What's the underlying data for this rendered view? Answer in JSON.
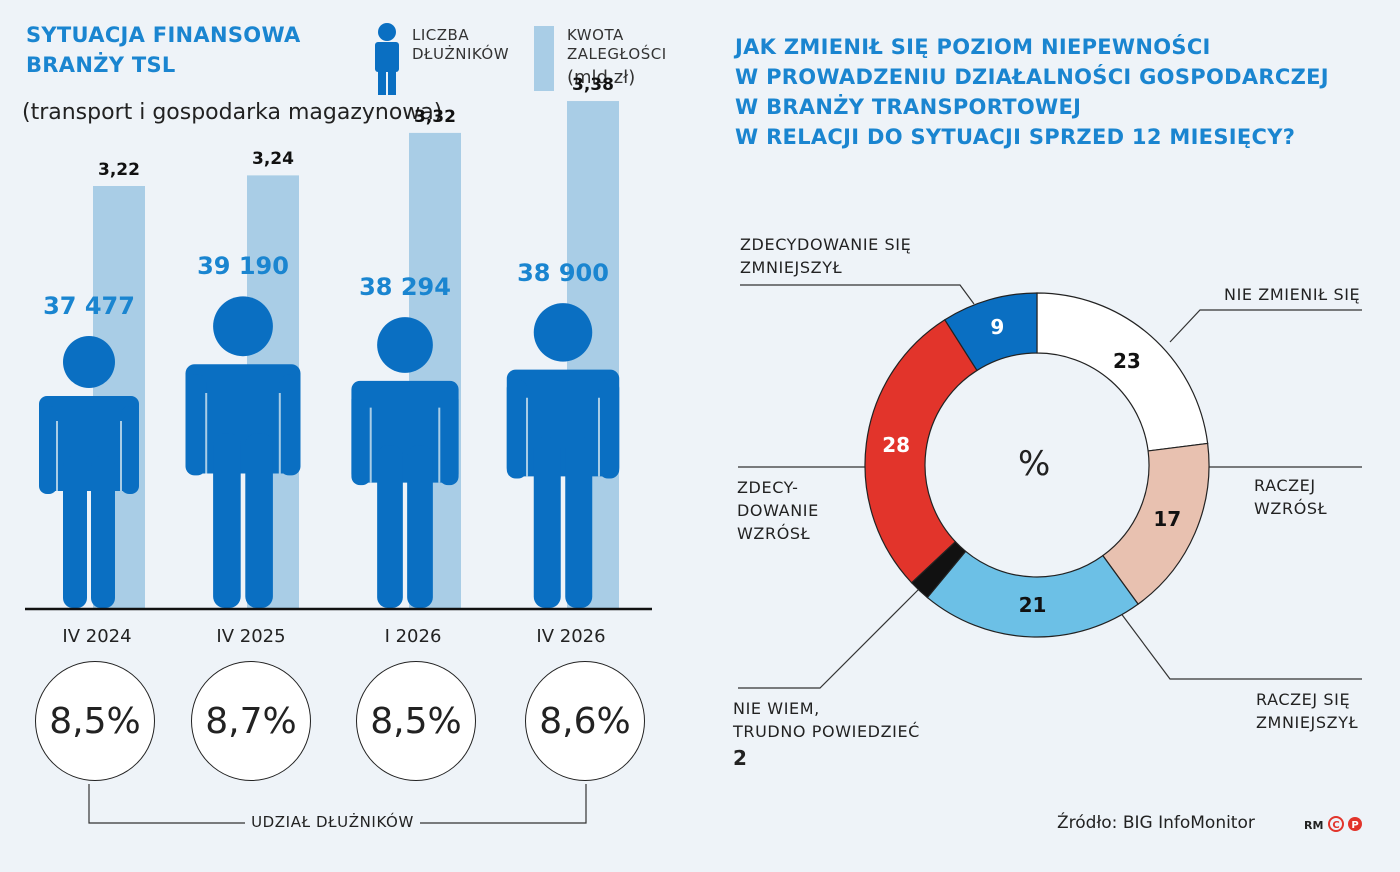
{
  "left": {
    "title_line1": "SYTUACJA FINANSOWA",
    "title_line2": "BRANŻY TSL",
    "subtitle": "(transport i gospodarka magazynowa)",
    "legend_count_line1": "LICZBA",
    "legend_count_line2": "DŁUŻNIKÓW",
    "legend_amount_line1": "KWOTA",
    "legend_amount_line2": "ZALEGŁOŚCI",
    "legend_amount_line3": "(mld zł)",
    "share_label": "UDZIAŁ DŁUŻNIKÓW"
  },
  "right": {
    "title_line1": "JAK ZMIENIŁ SIĘ POZIOM NIEPEWNOŚCI",
    "title_line2": "W PROWADZENIU DZIAŁALNOŚCI GOSPODARCZEJ",
    "title_line3": "W BRANŻY TRANSPORTOWEJ",
    "title_line4": "W RELACJI DO SYTUACJI SPRZED 12 MIESIĘCY?",
    "center_label": "%",
    "source": "Źródło: BIG InfoMonitor",
    "credit": "RM"
  },
  "colors": {
    "accent": "#1a85d0",
    "person": "#0a6fc2",
    "bar": "#a9cde6",
    "red": "#e2342b",
    "pink": "#e8c1b0",
    "light_blue": "#6cc0e6",
    "black": "#111111",
    "white": "#ffffff"
  },
  "chart_data": [
    {
      "type": "bar",
      "categories": [
        "IV 2024",
        "IV 2025",
        "I 2026",
        "IV 2026"
      ],
      "series": [
        {
          "name": "KWOTA ZALEGŁOŚCI (mld zł)",
          "values": [
            3.22,
            3.24,
            3.32,
            3.38
          ],
          "labels": [
            "3,22",
            "3,24",
            "3,32",
            "3,38"
          ]
        },
        {
          "name": "LICZBA DŁUŻNIKÓW",
          "values": [
            37477,
            39190,
            38294,
            38900
          ],
          "labels": [
            "37 477",
            "39 190",
            "38 294",
            "38 900"
          ]
        }
      ],
      "share": {
        "name": "UDZIAŁ DŁUŻNIKÓW",
        "values": [
          8.5,
          8.7,
          8.5,
          8.6
        ],
        "labels": [
          "8,5%",
          "8,7%",
          "8,5%",
          "8,6%"
        ]
      }
    },
    {
      "type": "pie",
      "segments": [
        {
          "label": "NIE ZMIENIŁ SIĘ",
          "value": 23,
          "color": "#ffffff"
        },
        {
          "label": "RACZEJ WZRÓSŁ",
          "value": 17,
          "color": "#e8c1b0"
        },
        {
          "label": "RACZEJ SIĘ ZMNIEJSZYŁ",
          "value": 21,
          "color": "#6cc0e6"
        },
        {
          "label": "NIE WIEM, TRUDNO POWIEDZIEĆ",
          "value": 2,
          "color": "#111111"
        },
        {
          "label": "ZDECYDOWANIE WZRÓSŁ",
          "value": 28,
          "color": "#e2342b"
        },
        {
          "label": "ZDECYDOWANIE SIĘ ZMNIEJSZYŁ",
          "value": 9,
          "color": "#0a6fc2"
        }
      ],
      "external_labels": {
        "nie_zmienil": [
          "NIE ZMIENIŁ SIĘ"
        ],
        "raczej_wzrosl": [
          "RACZEJ",
          "WZRÓSŁ"
        ],
        "raczej_zmniejszyl": [
          "RACZEJ SIĘ",
          "ZMNIEJSZYŁ"
        ],
        "nie_wiem": [
          "NIE WIEM,",
          "TRUDNO POWIEDZIEĆ"
        ],
        "zdecyd_wzrosl": [
          "ZDECY-",
          "DOWANIE",
          "WZRÓSŁ"
        ],
        "zdecyd_zmniejszyl": [
          "ZDECYDOWANIE SIĘ",
          "ZMNIEJSZYŁ"
        ]
      }
    }
  ]
}
